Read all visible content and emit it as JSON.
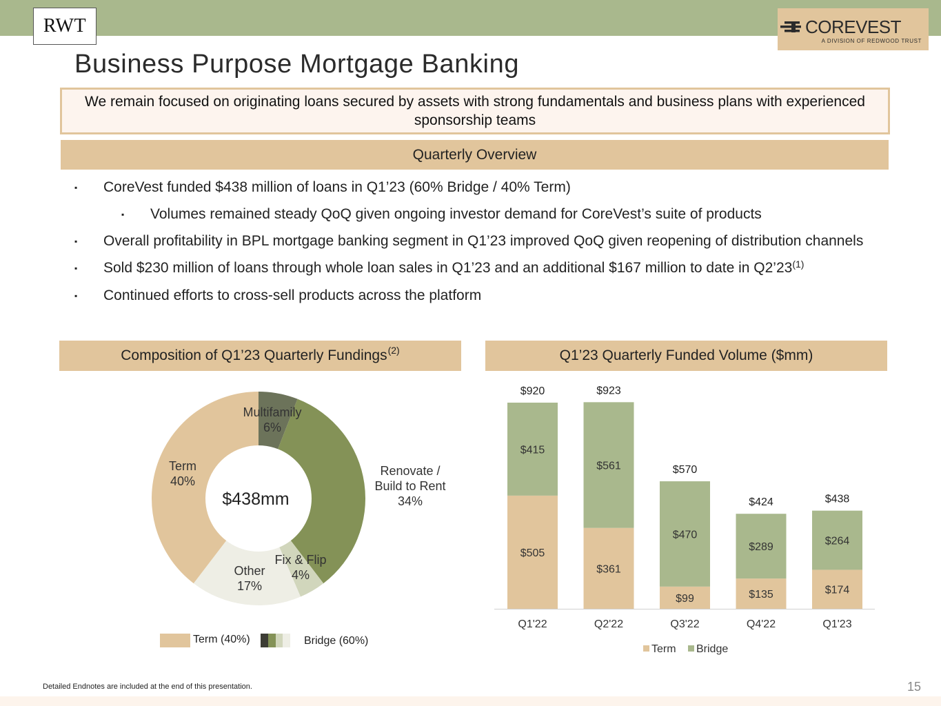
{
  "header": {
    "rwt_logo": "RWT",
    "brand_logo_main": "COREVEST",
    "brand_logo_sub": "A DIVISION OF REDWOOD TRUST"
  },
  "page_title": "Business Purpose Mortgage Banking",
  "focus_statement": "We remain focused on originating loans secured by assets with strong fundamentals and business plans with experienced sponsorship teams",
  "overview": {
    "heading": "Quarterly Overview",
    "bullets": [
      {
        "text": "CoreVest funded $438 million of loans in Q1’23 (60% Bridge / 40% Term)",
        "level": 1
      },
      {
        "text": "Volumes remained steady QoQ given ongoing investor demand for CoreVest’s suite of products",
        "level": 2
      },
      {
        "text": "Overall profitability in BPL mortgage banking segment in Q1’23 improved QoQ given reopening of distribution channels",
        "level": 1
      },
      {
        "text": "Sold $230 million of loans through whole loan sales in Q1’23 and an additional $167 million to date in Q2’23",
        "sup": "(1)",
        "level": 1
      },
      {
        "text": "Continued efforts to cross-sell products across the platform",
        "level": 1
      }
    ],
    "bullet_marker": "▪"
  },
  "pie_section": {
    "heading": "Composition of Q1’23 Quarterly Fundings",
    "heading_sup": "(2)",
    "legend_term": "Term (40%)",
    "legend_bridge": "Bridge (60%)"
  },
  "bar_section": {
    "heading": "Q1’23 Quarterly Funded Volume ($mm)"
  },
  "colors": {
    "top_bar": "#a9b88d",
    "band": "#e1c59c",
    "term": "#e1c59c",
    "bridge": "#a9b88d",
    "multifamily": "#6c735a",
    "renovate": "#849257",
    "fix_flip": "#d1d6bc",
    "other": "#eeeee5"
  },
  "chart_data": [
    {
      "type": "pie",
      "donut": true,
      "center_label": "$438mm",
      "slices": [
        {
          "label": "Multifamily",
          "value": 6,
          "display": "6%",
          "color": "#6c735a"
        },
        {
          "label": "Renovate / Build to Rent",
          "value": 34,
          "display": "34%",
          "color": "#849257"
        },
        {
          "label": "Fix & Flip",
          "value": 4,
          "display": "4%",
          "color": "#d1d6bc"
        },
        {
          "label": "Other",
          "value": 17,
          "display": "17%",
          "color": "#eeeee5"
        },
        {
          "label": "Term",
          "value": 40,
          "display": "40%",
          "color": "#e1c59c"
        }
      ]
    },
    {
      "type": "bar",
      "stacked": true,
      "categories": [
        "Q1'22",
        "Q2'22",
        "Q3'22",
        "Q4'22",
        "Q1'23"
      ],
      "series": [
        {
          "name": "Term",
          "values": [
            505,
            361,
            99,
            135,
            174
          ],
          "color": "#e1c59c"
        },
        {
          "name": "Bridge",
          "values": [
            415,
            561,
            470,
            289,
            264
          ],
          "color": "#a9b88d"
        }
      ],
      "totals": [
        920,
        923,
        570,
        424,
        438
      ],
      "value_prefix": "$",
      "ylim": [
        0,
        1000
      ],
      "legend_position": "bottom"
    }
  ],
  "footer": {
    "note": "Detailed Endnotes are included at the end of this presentation.",
    "page_number": "15"
  }
}
